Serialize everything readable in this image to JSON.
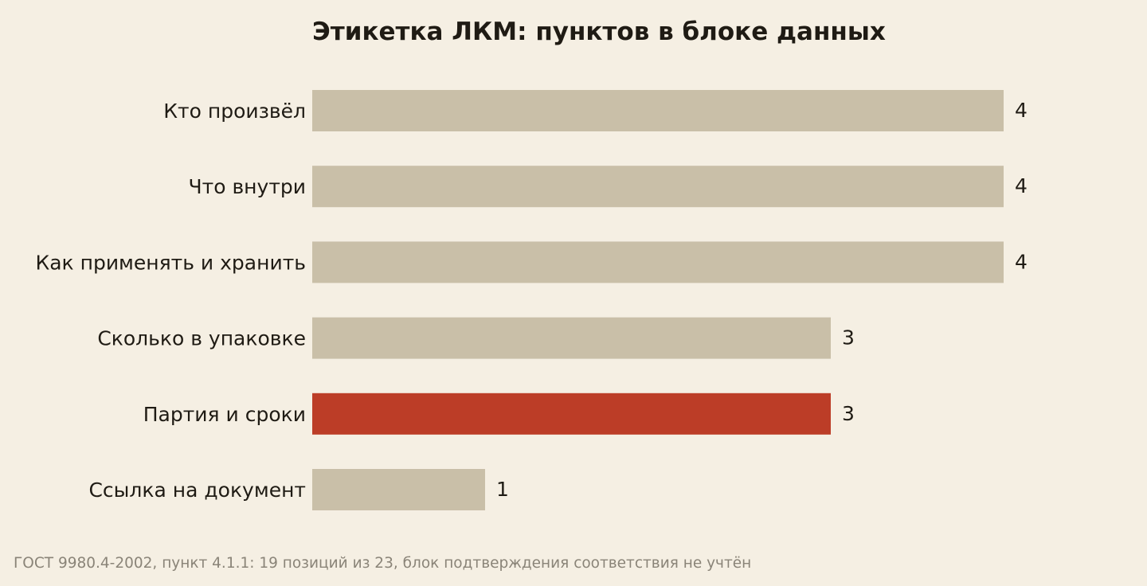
{
  "chart_data": {
    "type": "bar",
    "orientation": "horizontal",
    "title": "Этикетка ЛКМ: пунктов в блоке данных",
    "categories": [
      "Кто произвёл",
      "Что внутри",
      "Как применять и хранить",
      "Сколько в упаковке",
      "Партия и сроки",
      "Ссылка на документ"
    ],
    "values": [
      4,
      4,
      4,
      3,
      3,
      1
    ],
    "value_labels": [
      "4",
      "4",
      "4",
      "3",
      "3",
      "1"
    ],
    "highlight_index": 4,
    "xlim": [
      0,
      4
    ],
    "grid": false,
    "colors": {
      "bar": "#c9bfa8",
      "highlight": "#bc3d27",
      "text": "#1f1b14",
      "note": "#8a8478",
      "background": "#f5efe3"
    }
  },
  "footnote": "ГОСТ 9980.4-2002, пункт 4.1.1: 19 позиций из 23, блок подтверждения соответствия не учтён"
}
